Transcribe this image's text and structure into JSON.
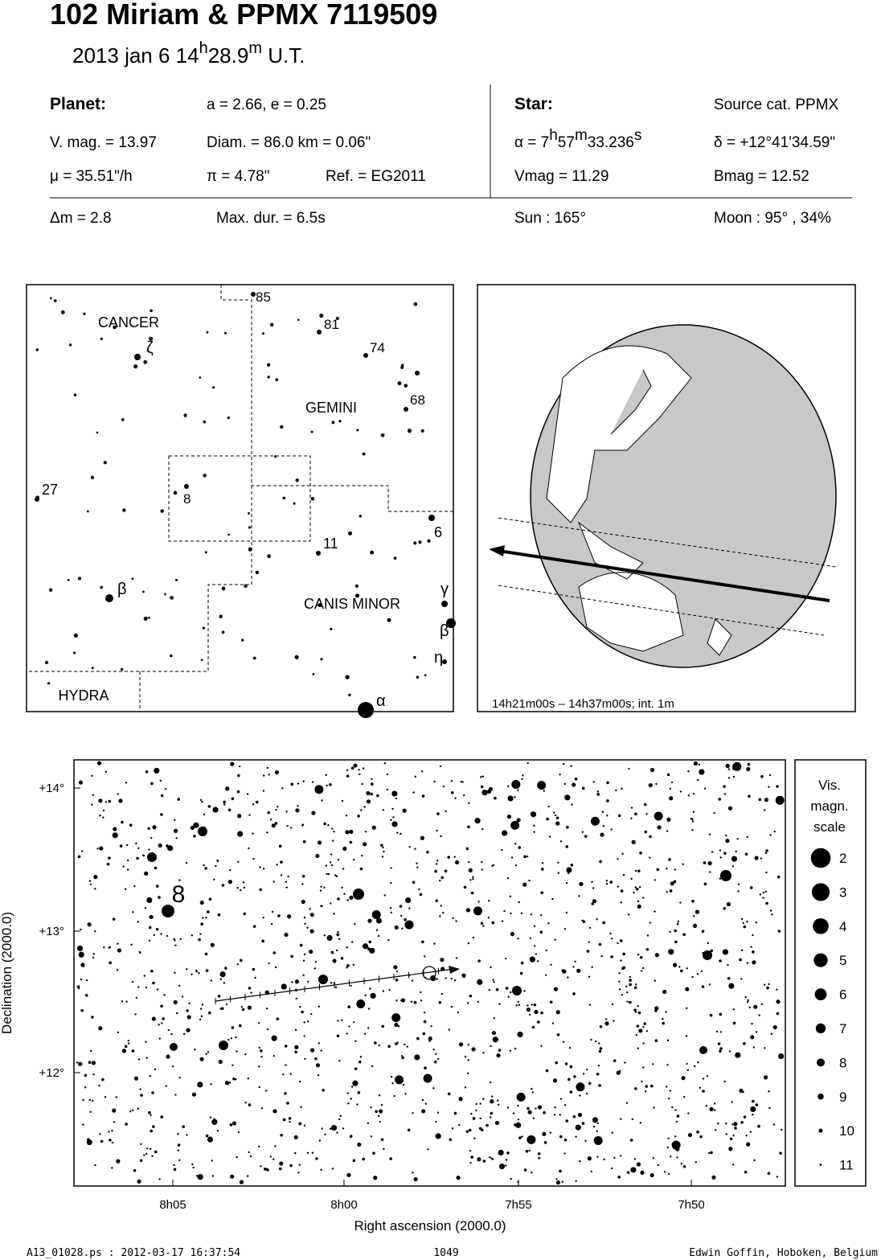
{
  "header": {
    "title": "102 Miriam  &  PPMX 7119509",
    "subtitle": [
      "2013 jan  6  14",
      "h",
      "28.9",
      "m",
      " U.T."
    ]
  },
  "info": {
    "planet_label": "Planet:",
    "orbit": "a = 2.66, e = 0.25",
    "vmag": "V. mag. = 13.97",
    "diam": "Diam. = 86.0 km = 0.06\"",
    "mu": "μ =  35.51\"/h",
    "pi": "π =  4.78\"",
    "ref": "Ref. = EG2011",
    "star_label": "Star:",
    "source": "Source cat.  PPMX",
    "alpha": [
      "α =  7",
      "h",
      "57",
      "m",
      "33.236",
      "s"
    ],
    "delta": "δ = +12°41'34.59\"",
    "star_vmag": "Vmag = 11.29",
    "bmag": "Bmag = 12.52",
    "dm": "Δm = 2.8",
    "maxdur": "Max. dur. = 6.5s",
    "sun": "Sun : 165°",
    "moon": "Moon :  95° , 34%"
  },
  "finder": {
    "labels": [
      "CANCER",
      "ζ",
      "GEMINI",
      "27",
      "8",
      "11",
      "6",
      "β",
      "CANIS MINOR",
      "γ",
      "β",
      "η",
      "HYDRA",
      "α",
      "85",
      "81",
      "74",
      "68"
    ]
  },
  "globe": {
    "caption": "14h21m00s – 14h37m00s; int.  1m"
  },
  "field": {
    "yticks": [
      "+14°",
      "+13°",
      "+12°"
    ],
    "xticks": [
      "8h05",
      "8h00",
      "7h55",
      "7h50"
    ],
    "xlabel": "Right ascension (2000.0)",
    "ylabel": "Declination (2000.0)",
    "star_label": "8",
    "legend_title": [
      "Vis.",
      "magn.",
      "scale"
    ],
    "legend_values": [
      2,
      3,
      4,
      5,
      6,
      7,
      8,
      9,
      10,
      11
    ]
  },
  "footer": {
    "left": "A13_01028.ps : 2012-03-17 16:37:54",
    "center": "1049",
    "right": "Edwin Goffin, Hoboken, Belgium"
  }
}
